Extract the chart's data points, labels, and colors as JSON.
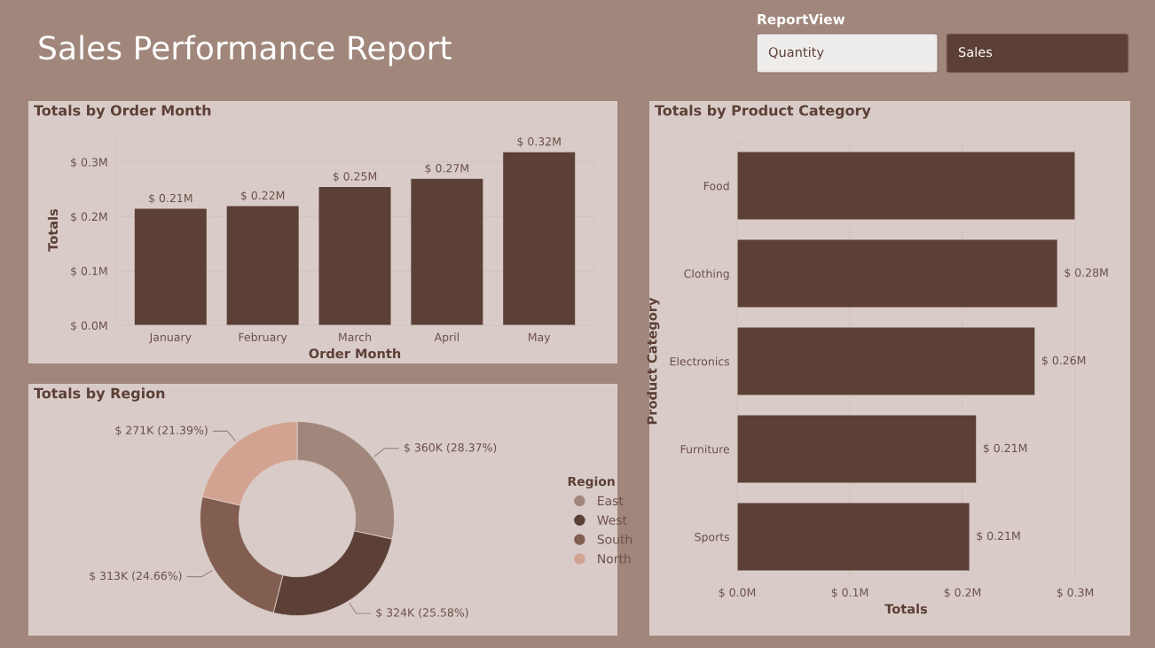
{
  "chart_data": [
    {
      "type": "other",
      "title": "Sales Performance Report",
      "annotations": [
        "ReportView",
        "Quantity",
        "Sales"
      ]
    },
    {
      "type": "bar",
      "title": "Totals by Order Month",
      "xlabel": "Order Month",
      "ylabel": "Totals",
      "categories": [
        "January",
        "February",
        "March",
        "April",
        "May"
      ],
      "values": [
        0.214,
        0.219,
        0.254,
        0.269,
        0.318
      ],
      "value_labels": [
        "$ 0.21M",
        "$ 0.22M",
        "$ 0.25M",
        "$ 0.27M",
        "$ 0.32M"
      ],
      "color": "#5c3f36",
      "ylim": [
        0,
        0.35
      ],
      "yticks": [
        {
          "value": 0,
          "label": "$ 0.0M"
        },
        {
          "value": 0.1,
          "label": "$ 0.1M"
        },
        {
          "value": 0.2,
          "label": "$ 0.2M"
        },
        {
          "value": 0.3,
          "label": "$ 0.3M"
        }
      ],
      "grid": "y"
    },
    {
      "type": "donut",
      "title": "Totals by Region",
      "legend_title": "Region",
      "legend": "right",
      "categories": [
        "East",
        "West",
        "South",
        "North"
      ],
      "values": [
        360000,
        324000,
        313000,
        271000
      ],
      "value_labels": [
        "$ 360K (28.37%)",
        "$ 324K (25.58%)",
        "$ 313K (24.66%)",
        "$ 271K (21.39%)"
      ],
      "colors": [
        "#a1877b",
        "#5c3f36",
        "#825e51",
        "#d3a392"
      ]
    },
    {
      "type": "bar",
      "orientation": "horizontal",
      "title": "Totals by Product Category",
      "xlabel": "Totals",
      "ylabel": "Product Category",
      "categories": [
        "Food",
        "Clothing",
        "Electronics",
        "Furniture",
        "Sports"
      ],
      "values": [
        0.3,
        0.284,
        0.264,
        0.212,
        0.206
      ],
      "value_labels": [
        null,
        "$ 0.28M",
        "$ 0.26M",
        "$ 0.21M",
        "$ 0.21M"
      ],
      "color": "#5c3f36",
      "xlim": [
        0,
        0.3
      ],
      "xticks": [
        {
          "value": 0,
          "label": "$ 0.0M"
        },
        {
          "value": 0.1,
          "label": "$ 0.1M"
        },
        {
          "value": 0.2,
          "label": "$ 0.2M"
        },
        {
          "value": 0.3,
          "label": "$ 0.3M"
        }
      ],
      "grid": "x"
    }
  ]
}
